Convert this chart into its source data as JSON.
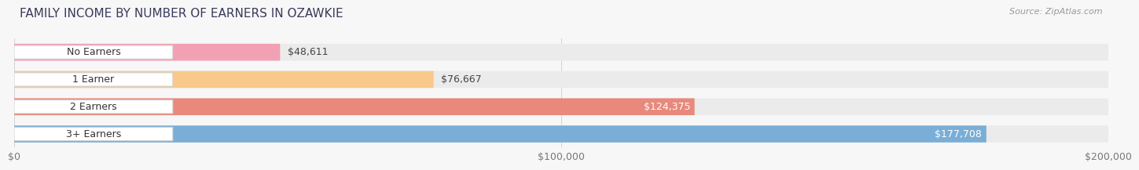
{
  "title": "FAMILY INCOME BY NUMBER OF EARNERS IN OZAWKIE",
  "source": "Source: ZipAtlas.com",
  "categories": [
    "No Earners",
    "1 Earner",
    "2 Earners",
    "3+ Earners"
  ],
  "values": [
    48611,
    76667,
    124375,
    177708
  ],
  "bar_colors": [
    "#f2a0b4",
    "#f8c98a",
    "#e8897c",
    "#7aaed6"
  ],
  "label_colors": [
    "#555555",
    "#555555",
    "#ffffff",
    "#ffffff"
  ],
  "track_color": "#ebebeb",
  "background_color": "#f7f7f7",
  "xlim_max": 200000,
  "xticks": [
    0,
    100000,
    200000
  ],
  "xtick_labels": [
    "$0",
    "$100,000",
    "$200,000"
  ],
  "title_color": "#3a3a5c",
  "title_fontsize": 11,
  "source_fontsize": 8,
  "label_fontsize": 9,
  "tick_fontsize": 9,
  "category_fontsize": 9
}
